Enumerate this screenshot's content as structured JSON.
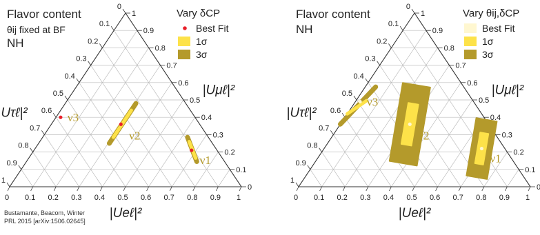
{
  "chart_data": [
    {
      "type": "ternary",
      "title": "Flavor content",
      "subtitle": "θij fixed at BF",
      "ordering": "NH",
      "legend": {
        "heading": "Vary δCP",
        "entries": [
          "Best Fit",
          "1σ",
          "3σ"
        ]
      },
      "axes": {
        "bottom": {
          "label": "|Ueℓ|²",
          "ticks": [
            "0",
            "0.1",
            "0.2",
            "0.3",
            "0.4",
            "0.5",
            "0.6",
            "0.7",
            "0.8",
            "0.9",
            "1"
          ]
        },
        "right": {
          "label": "|Uμℓ|²",
          "ticks": [
            "0",
            "0.1",
            "0.2",
            "0.3",
            "0.4",
            "0.5",
            "0.6",
            "0.7",
            "0.8",
            "0.9",
            "1"
          ]
        },
        "left": {
          "label": "|Uτℓ|²",
          "ticks": [
            "0",
            "0.1",
            "0.2",
            "0.3",
            "0.4",
            "0.5",
            "0.6",
            "0.7",
            "0.8",
            "0.9",
            "1"
          ]
        },
        "range": [
          0,
          1
        ],
        "grid": true,
        "grid_step": 0.1
      },
      "series": [
        {
          "name": "ν1",
          "best_fit": {
            "e": 0.68,
            "mu": 0.21,
            "tau": 0.11
          },
          "one_sigma": [
            {
              "e": 0.645,
              "mu": 0.26,
              "tau": 0.095
            },
            {
              "e": 0.72,
              "mu": 0.165,
              "tau": 0.115
            }
          ],
          "three_sigma": [
            {
              "e": 0.625,
              "mu": 0.285,
              "tau": 0.09
            },
            {
              "e": 0.735,
              "mu": 0.145,
              "tau": 0.12
            }
          ]
        },
        {
          "name": "ν2",
          "best_fit": {
            "e": 0.3,
            "mu": 0.36,
            "tau": 0.34
          },
          "one_sigma": [
            {
              "e": 0.305,
              "mu": 0.44,
              "tau": 0.255
            },
            {
              "e": 0.305,
              "mu": 0.285,
              "tau": 0.41
            }
          ],
          "three_sigma": [
            {
              "e": 0.305,
              "mu": 0.48,
              "tau": 0.215
            },
            {
              "e": 0.305,
              "mu": 0.25,
              "tau": 0.445
            }
          ]
        },
        {
          "name": "ν3",
          "best_fit": {
            "e": 0.02,
            "mu": 0.4,
            "tau": 0.58
          },
          "one_sigma": [],
          "three_sigma": []
        }
      ],
      "credit": [
        "Bustamante, Beacom, Winter",
        "PRL 2015 [arXiv:1506.02645]"
      ]
    },
    {
      "type": "ternary",
      "title": "Flavor content",
      "ordering": "NH",
      "legend": {
        "heading": "Vary θij,δCP",
        "entries": [
          "Best Fit",
          "1σ",
          "3σ"
        ]
      },
      "axes": {
        "bottom": {
          "label": "|Ueℓ|²",
          "ticks": [
            "0",
            "0.1",
            "0.2",
            "0.3",
            "0.4",
            "0.5",
            "0.6",
            "0.7",
            "0.8",
            "0.9",
            "1"
          ]
        },
        "right": {
          "label": "|Uμℓ|²",
          "ticks": [
            "0",
            "0.1",
            "0.2",
            "0.3",
            "0.4",
            "0.5",
            "0.6",
            "0.7",
            "0.8",
            "0.9",
            "1"
          ]
        },
        "left": {
          "label": "|Uτℓ|²",
          "ticks": [
            "0",
            "0.1",
            "0.2",
            "0.3",
            "0.4",
            "0.5",
            "0.6",
            "0.7",
            "0.8",
            "0.9",
            "1"
          ]
        },
        "range": [
          0,
          1
        ],
        "grid": true,
        "grid_step": 0.1
      },
      "series": [
        {
          "name": "ν1",
          "best_fit": {
            "e": 0.68,
            "mu": 0.22,
            "tau": 0.1
          },
          "one_sigma_box": {
            "center": {
              "e": 0.68,
              "mu": 0.22
            },
            "half_len": 0.075,
            "half_wid": 0.018
          },
          "three_sigma_box": {
            "center": {
              "e": 0.68,
              "mu": 0.22
            },
            "half_len": 0.14,
            "half_wid": 0.045
          }
        },
        {
          "name": "ν2",
          "best_fit": {
            "e": 0.3,
            "mu": 0.36,
            "tau": 0.34
          },
          "one_sigma_box": {
            "center": {
              "e": 0.3,
              "mu": 0.36
            },
            "half_len": 0.1,
            "half_wid": 0.022
          },
          "three_sigma_box": {
            "center": {
              "e": 0.3,
              "mu": 0.36
            },
            "half_len": 0.19,
            "half_wid": 0.06
          }
        },
        {
          "name": "ν3",
          "best_fit": {
            "e": 0.02,
            "mu": 0.49,
            "tau": 0.49
          },
          "one_sigma": [
            {
              "e": 0.0,
              "mu": 0.42,
              "tau": 0.58
            },
            {
              "e": 0.045,
              "mu": 0.495,
              "tau": 0.46
            }
          ],
          "three_sigma": [
            {
              "e": 0.0,
              "mu": 0.36,
              "tau": 0.64
            },
            {
              "e": 0.045,
              "mu": 0.575,
              "tau": 0.38
            }
          ]
        }
      ]
    }
  ],
  "colors": {
    "best_fit_left": "#e8202a",
    "best_fit_right": "#fff7d0",
    "one_sigma": "#fde249",
    "three_sigma": "#b49a2b",
    "grid": "#bdbdbd",
    "frame": "#333333",
    "nu_label": "#b49a2b"
  }
}
